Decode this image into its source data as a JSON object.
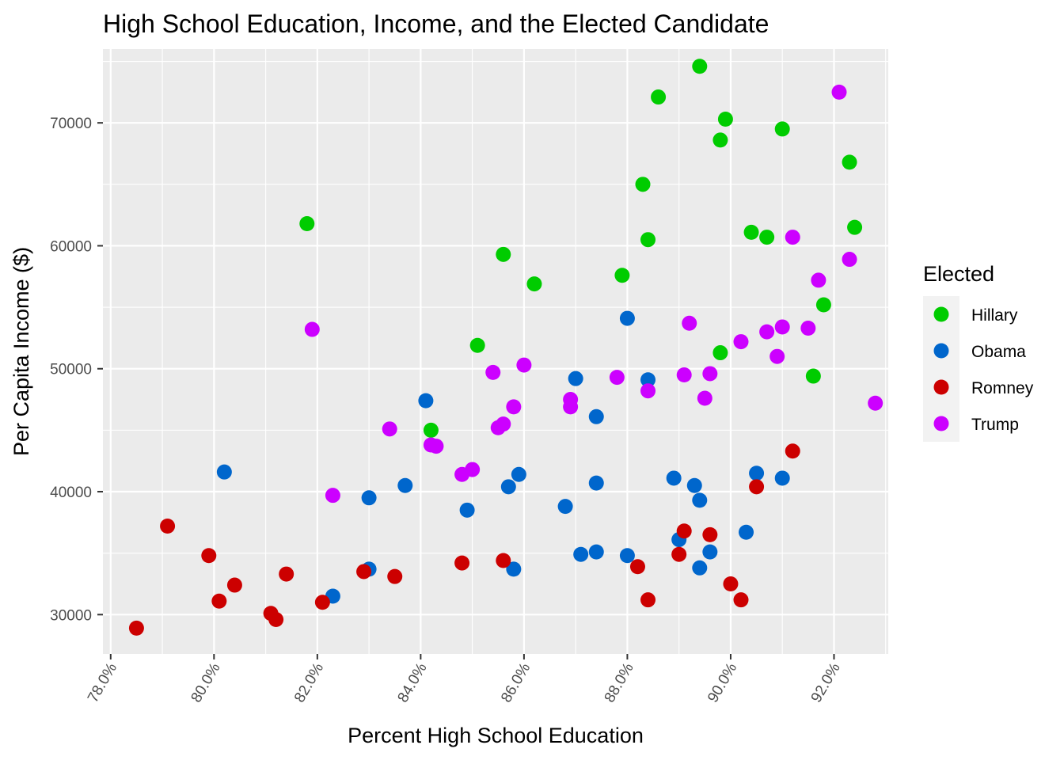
{
  "chart_data": {
    "type": "scatter",
    "title": "High School Education, Income, and the Elected Candidate",
    "xlabel": "Percent High School Education",
    "ylabel": "Per Capita Income ($)",
    "xlim": [
      0.7785,
      0.9305
    ],
    "ylim": [
      26800,
      76000
    ],
    "x_ticks": [
      0.78,
      0.8,
      0.82,
      0.84,
      0.86,
      0.88,
      0.9,
      0.92
    ],
    "x_tick_labels": [
      "78.0%",
      "80.0%",
      "82.0%",
      "84.0%",
      "86.0%",
      "88.0%",
      "90.0%",
      "92.0%"
    ],
    "y_ticks": [
      30000,
      40000,
      50000,
      60000,
      70000
    ],
    "y_tick_labels": [
      "30000",
      "40000",
      "50000",
      "60000",
      "70000"
    ],
    "grid": true,
    "legend": {
      "title": "Elected",
      "position": "right",
      "entries": [
        "Hillary",
        "Obama",
        "Romney",
        "Trump"
      ]
    },
    "colors": {
      "Hillary": "#00CC00",
      "Obama": "#0066CC",
      "Romney": "#CC0000",
      "Trump": "#CC00FF",
      "panel": "#EBEBEB",
      "grid": "#FFFFFF"
    },
    "series": [
      {
        "name": "Hillary",
        "points": [
          [
            0.894,
            74600
          ],
          [
            0.886,
            72100
          ],
          [
            0.899,
            70300
          ],
          [
            0.898,
            68600
          ],
          [
            0.91,
            69500
          ],
          [
            0.923,
            66800
          ],
          [
            0.883,
            65000
          ],
          [
            0.818,
            61800
          ],
          [
            0.904,
            61100
          ],
          [
            0.907,
            60700
          ],
          [
            0.924,
            61500
          ],
          [
            0.884,
            60500
          ],
          [
            0.856,
            59300
          ],
          [
            0.879,
            57600
          ],
          [
            0.862,
            56900
          ],
          [
            0.918,
            55200
          ],
          [
            0.851,
            51900
          ],
          [
            0.898,
            51300
          ],
          [
            0.916,
            49400
          ],
          [
            0.842,
            45000
          ]
        ]
      },
      {
        "name": "Obama",
        "points": [
          [
            0.88,
            54100
          ],
          [
            0.87,
            49200
          ],
          [
            0.884,
            49100
          ],
          [
            0.841,
            47400
          ],
          [
            0.874,
            46100
          ],
          [
            0.802,
            41600
          ],
          [
            0.905,
            41500
          ],
          [
            0.91,
            41100
          ],
          [
            0.859,
            41400
          ],
          [
            0.889,
            41100
          ],
          [
            0.837,
            40500
          ],
          [
            0.857,
            40400
          ],
          [
            0.874,
            40700
          ],
          [
            0.893,
            40500
          ],
          [
            0.83,
            39500
          ],
          [
            0.894,
            39300
          ],
          [
            0.868,
            38800
          ],
          [
            0.849,
            38500
          ],
          [
            0.903,
            36700
          ],
          [
            0.89,
            36100
          ],
          [
            0.871,
            34900
          ],
          [
            0.874,
            35100
          ],
          [
            0.88,
            34800
          ],
          [
            0.896,
            35100
          ],
          [
            0.83,
            33700
          ],
          [
            0.858,
            33700
          ],
          [
            0.894,
            33800
          ],
          [
            0.823,
            31500
          ]
        ]
      },
      {
        "name": "Romney",
        "points": [
          [
            0.912,
            43300
          ],
          [
            0.905,
            40400
          ],
          [
            0.791,
            37200
          ],
          [
            0.891,
            36800
          ],
          [
            0.896,
            36500
          ],
          [
            0.799,
            34800
          ],
          [
            0.89,
            34900
          ],
          [
            0.848,
            34200
          ],
          [
            0.856,
            34400
          ],
          [
            0.882,
            33900
          ],
          [
            0.814,
            33300
          ],
          [
            0.829,
            33500
          ],
          [
            0.835,
            33100
          ],
          [
            0.804,
            32400
          ],
          [
            0.9,
            32500
          ],
          [
            0.801,
            31100
          ],
          [
            0.821,
            31000
          ],
          [
            0.884,
            31200
          ],
          [
            0.902,
            31200
          ],
          [
            0.811,
            30100
          ],
          [
            0.812,
            29600
          ],
          [
            0.785,
            28900
          ]
        ]
      },
      {
        "name": "Trump",
        "points": [
          [
            0.921,
            72500
          ],
          [
            0.912,
            60700
          ],
          [
            0.923,
            58900
          ],
          [
            0.917,
            57200
          ],
          [
            0.892,
            53700
          ],
          [
            0.91,
            53400
          ],
          [
            0.907,
            53000
          ],
          [
            0.915,
            53300
          ],
          [
            0.819,
            53200
          ],
          [
            0.902,
            52200
          ],
          [
            0.909,
            51000
          ],
          [
            0.86,
            50300
          ],
          [
            0.854,
            49700
          ],
          [
            0.891,
            49500
          ],
          [
            0.896,
            49600
          ],
          [
            0.878,
            49300
          ],
          [
            0.869,
            47500
          ],
          [
            0.869,
            46900
          ],
          [
            0.858,
            46900
          ],
          [
            0.884,
            48200
          ],
          [
            0.895,
            47600
          ],
          [
            0.928,
            47200
          ],
          [
            0.834,
            45100
          ],
          [
            0.856,
            45500
          ],
          [
            0.855,
            45200
          ],
          [
            0.842,
            43800
          ],
          [
            0.843,
            43700
          ],
          [
            0.85,
            41800
          ],
          [
            0.848,
            41400
          ],
          [
            0.823,
            39700
          ]
        ]
      }
    ]
  }
}
